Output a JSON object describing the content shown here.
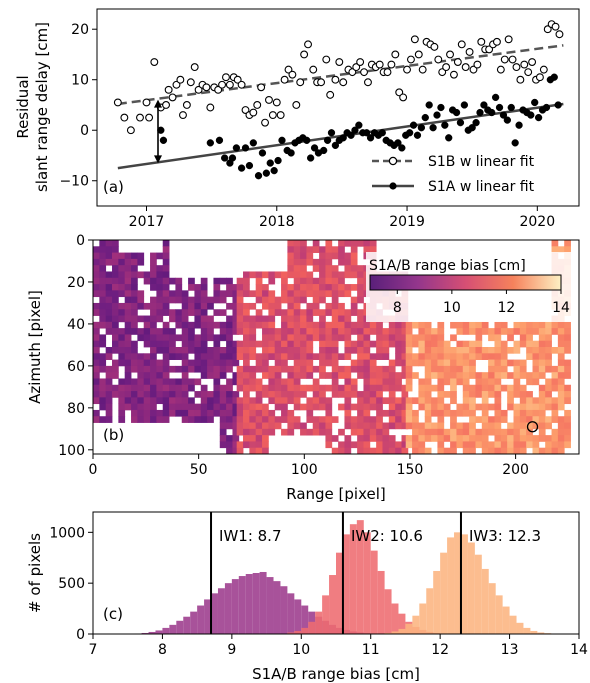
{
  "chart_data": [
    {
      "panel": "(a)",
      "type": "scatter",
      "ylabel_lines": [
        "Residual",
        "slant range delay [cm]"
      ],
      "xlim": [
        2016.62,
        2020.32
      ],
      "ylim": [
        -15,
        24
      ],
      "xticks": [
        2017,
        2018,
        2019,
        2020
      ],
      "xtick_labels": [
        "2017",
        "2018",
        "2019",
        "2020"
      ],
      "yticks": [
        -10,
        0,
        10,
        20
      ],
      "ytick_labels": [
        "−10",
        "0",
        "10",
        "20"
      ],
      "legend_position": "lower right",
      "series": [
        {
          "name": "S1B w linear fit",
          "marker": "open-circle",
          "fit": {
            "x": [
              2016.78,
              2020.2
            ],
            "y": [
              5.2,
              16.8
            ],
            "style": "dashed",
            "color": "#555555"
          },
          "x": [
            2016.78,
            2016.83,
            2016.88,
            2016.95,
            2017.0,
            2017.02,
            2017.06,
            2017.11,
            2017.15,
            2017.17,
            2017.2,
            2017.23,
            2017.26,
            2017.28,
            2017.31,
            2017.34,
            2017.37,
            2017.4,
            2017.43,
            2017.46,
            2017.49,
            2017.52,
            2017.55,
            2017.58,
            2017.61,
            2017.64,
            2017.67,
            2017.7,
            2017.73,
            2017.76,
            2017.79,
            2017.82,
            2017.85,
            2017.88,
            2017.91,
            2017.94,
            2017.97,
            2018.0,
            2018.03,
            2018.06,
            2018.09,
            2018.12,
            2018.15,
            2018.18,
            2018.21,
            2018.24,
            2018.28,
            2018.31,
            2018.34,
            2018.38,
            2018.41,
            2018.45,
            2018.48,
            2018.51,
            2018.55,
            2018.58,
            2018.61,
            2018.64,
            2018.67,
            2018.7,
            2018.73,
            2018.76,
            2018.79,
            2018.82,
            2018.85,
            2018.88,
            2018.91,
            2018.94,
            2018.97,
            2019.0,
            2019.03,
            2019.06,
            2019.09,
            2019.12,
            2019.15,
            2019.18,
            2019.21,
            2019.24,
            2019.27,
            2019.3,
            2019.33,
            2019.36,
            2019.39,
            2019.42,
            2019.45,
            2019.48,
            2019.51,
            2019.54,
            2019.57,
            2019.6,
            2019.63,
            2019.66,
            2019.69,
            2019.72,
            2019.75,
            2019.78,
            2019.81,
            2019.84,
            2019.87,
            2019.9,
            2019.93,
            2019.96,
            2019.99,
            2020.02,
            2020.05,
            2020.08,
            2020.11,
            2020.14,
            2020.17
          ],
          "y": [
            5.5,
            2.5,
            0.0,
            2.5,
            5.5,
            2.5,
            13.5,
            4.5,
            5.0,
            8.0,
            6.5,
            9.0,
            10.0,
            3.0,
            5.0,
            9.5,
            12.5,
            8.0,
            9.0,
            8.5,
            4.5,
            8.5,
            8.0,
            9.0,
            10.5,
            9.0,
            10.5,
            10.0,
            9.0,
            4.0,
            3.0,
            3.5,
            5.0,
            8.5,
            1.5,
            6.0,
            3.0,
            5.5,
            3.0,
            10.0,
            12.0,
            11.0,
            5.0,
            9.5,
            15.0,
            17.0,
            12.0,
            9.5,
            9.5,
            14.0,
            7.0,
            10.0,
            13.5,
            9.5,
            12.0,
            11.5,
            12.5,
            13.5,
            11.5,
            9.5,
            13.0,
            12.5,
            13.0,
            11.5,
            11.5,
            13.0,
            15.0,
            7.5,
            6.5,
            12.0,
            14.0,
            18.0,
            15.0,
            12.0,
            17.5,
            17.0,
            16.5,
            14.0,
            11.5,
            12.5,
            15.0,
            11.0,
            13.5,
            17.0,
            12.5,
            15.5,
            12.0,
            13.0,
            17.5,
            16.0,
            16.0,
            17.0,
            17.5,
            12.0,
            14.0,
            18.0,
            14.0,
            12.5,
            10.0,
            13.0,
            11.5,
            13.5,
            10.0,
            10.5,
            12.0,
            20.0,
            21.0,
            20.5,
            19.0
          ]
        },
        {
          "name": "S1A w linear fit",
          "marker": "filled-circle",
          "fit": {
            "x": [
              2016.78,
              2020.2
            ],
            "y": [
              -7.5,
              5.2
            ],
            "style": "solid",
            "color": "#444444"
          },
          "x": [
            2017.11,
            2017.13,
            2017.49,
            2017.56,
            2017.6,
            2017.64,
            2017.66,
            2017.69,
            2017.73,
            2017.76,
            2017.79,
            2017.82,
            2017.86,
            2017.89,
            2017.92,
            2017.95,
            2017.98,
            2018.01,
            2018.04,
            2018.08,
            2018.11,
            2018.14,
            2018.17,
            2018.2,
            2018.23,
            2018.26,
            2018.29,
            2018.32,
            2018.36,
            2018.39,
            2018.42,
            2018.45,
            2018.48,
            2018.51,
            2018.54,
            2018.57,
            2018.6,
            2018.63,
            2018.66,
            2018.69,
            2018.72,
            2018.75,
            2018.78,
            2018.81,
            2018.84,
            2018.87,
            2018.9,
            2018.93,
            2018.96,
            2018.99,
            2019.02,
            2019.05,
            2019.08,
            2019.11,
            2019.14,
            2019.17,
            2019.2,
            2019.23,
            2019.26,
            2019.29,
            2019.32,
            2019.35,
            2019.38,
            2019.41,
            2019.44,
            2019.47,
            2019.5,
            2019.53,
            2019.56,
            2019.59,
            2019.62,
            2019.65,
            2019.68,
            2019.71,
            2019.74,
            2019.77,
            2019.8,
            2019.83,
            2019.86,
            2019.89,
            2019.92,
            2019.95,
            2019.98,
            2020.01,
            2020.04,
            2020.07,
            2020.1,
            2020.13,
            2020.16
          ],
          "y": [
            0.0,
            -2.0,
            -2.5,
            -2.0,
            -5.5,
            -6.5,
            -5.5,
            -3.5,
            -7.5,
            -3.5,
            -7.0,
            -2.5,
            -9.0,
            -4.5,
            -8.5,
            -6.5,
            -8.0,
            -6.0,
            -2.0,
            -4.0,
            -4.5,
            -2.5,
            -2.0,
            -1.5,
            -2.0,
            -5.5,
            -3.5,
            -4.5,
            -4.0,
            -2.0,
            -0.5,
            -3.0,
            -2.0,
            -1.5,
            -0.5,
            -1.0,
            0.0,
            1.0,
            -0.5,
            -0.5,
            -1.5,
            -0.5,
            -1.0,
            -0.5,
            -2.0,
            -2.5,
            -3.0,
            -2.5,
            -3.5,
            -1.0,
            -0.5,
            1.0,
            -1.0,
            0.5,
            2.5,
            5.0,
            0.5,
            3.0,
            4.5,
            1.0,
            -1.5,
            4.0,
            3.5,
            1.5,
            5.0,
            0.0,
            0.5,
            1.5,
            3.5,
            5.0,
            4.0,
            3.5,
            6.5,
            4.5,
            3.0,
            2.0,
            4.5,
            -2.5,
            1.0,
            4.0,
            3.5,
            3.0,
            5.5,
            2.5,
            4.0,
            4.5,
            10.0,
            10.5,
            5.0
          ]
        }
      ]
    },
    {
      "panel": "(b)",
      "type": "heatmap",
      "xlabel": "Range [pixel]",
      "ylabel": "Azimuth [pixel]",
      "xlim": [
        0,
        230
      ],
      "ylim": [
        0,
        102
      ],
      "xticks": [
        0,
        50,
        100,
        150,
        200
      ],
      "yticks": [
        0,
        20,
        40,
        60,
        80,
        100
      ],
      "colorbar": {
        "label": "S1A/B range bias [cm]",
        "range": [
          7,
          14
        ],
        "ticks": [
          "8",
          "10",
          "12",
          "14"
        ],
        "colormap": "magma-light",
        "position": "top-right"
      },
      "subswaths": [
        {
          "name": "IW1",
          "range_start": 0,
          "range_end": 68,
          "value_cm": 8.7
        },
        {
          "name": "IW2",
          "range_start": 68,
          "range_end": 148,
          "value_cm": 10.6
        },
        {
          "name": "IW3",
          "range_start": 148,
          "range_end": 225,
          "value_cm": 12.3
        }
      ],
      "marker": {
        "shape": "open-circle",
        "range": 208,
        "azimuth": 89
      }
    },
    {
      "panel": "(c)",
      "type": "bar",
      "subtype": "histogram",
      "xlabel": "S1A/B range bias [cm]",
      "ylabel": "# of pixels",
      "xlim": [
        7,
        14
      ],
      "ylim": [
        0,
        1200
      ],
      "xticks": [
        7,
        8,
        9,
        10,
        11,
        12,
        13,
        14
      ],
      "yticks": [
        0,
        500,
        1000
      ],
      "bin_width": 0.1,
      "series": [
        {
          "name": "IW1",
          "label": "IW1: 8.7",
          "mean": 8.7,
          "color": "#9c3a8c",
          "bin_start": 7.6,
          "counts": [
            5,
            10,
            20,
            35,
            60,
            90,
            130,
            170,
            220,
            280,
            340,
            400,
            450,
            500,
            540,
            570,
            590,
            600,
            610,
            560,
            520,
            470,
            400,
            340,
            280,
            220,
            170,
            130,
            90,
            60,
            40,
            25,
            15,
            8,
            4
          ]
        },
        {
          "name": "IW2",
          "label": "IW2: 10.6",
          "mean": 10.6,
          "color": "#ee6b70",
          "bin_start": 9.8,
          "counts": [
            15,
            30,
            60,
            120,
            220,
            380,
            580,
            800,
            980,
            1080,
            1120,
            1000,
            820,
            620,
            440,
            300,
            200,
            120,
            70,
            40,
            20,
            10
          ]
        },
        {
          "name": "IW3",
          "label": "IW3: 12.3",
          "mean": 12.3,
          "color": "#fcb47f",
          "bin_start": 11.2,
          "counts": [
            10,
            25,
            50,
            100,
            180,
            300,
            450,
            620,
            800,
            950,
            1000,
            980,
            900,
            780,
            640,
            500,
            380,
            270,
            180,
            110,
            60,
            30,
            15,
            8
          ]
        }
      ]
    }
  ]
}
